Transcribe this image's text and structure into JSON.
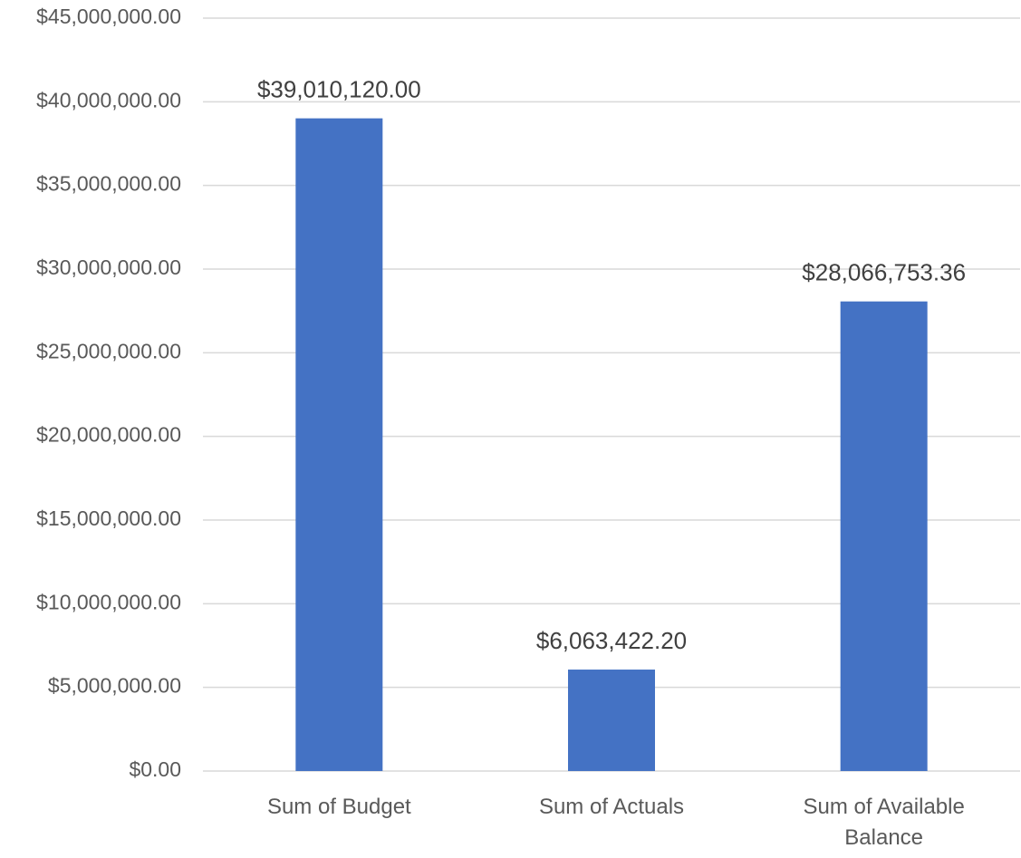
{
  "chart_data": {
    "type": "bar",
    "categories": [
      "Sum of Budget",
      "Sum of Actuals",
      "Sum of Available Balance"
    ],
    "values": [
      39010120.0,
      6063422.2,
      28066753.36
    ],
    "value_labels": [
      "$39,010,120.00",
      "$6,063,422.20",
      "$28,066,753.36"
    ],
    "color": "#4472c4",
    "ylim": [
      0,
      45000000
    ],
    "yticks": [
      {
        "value": 0,
        "label": "$0.00"
      },
      {
        "value": 5000000,
        "label": "$5,000,000.00"
      },
      {
        "value": 10000000,
        "label": "$10,000,000.00"
      },
      {
        "value": 15000000,
        "label": "$15,000,000.00"
      },
      {
        "value": 20000000,
        "label": "$20,000,000.00"
      },
      {
        "value": 25000000,
        "label": "$25,000,000.00"
      },
      {
        "value": 30000000,
        "label": "$30,000,000.00"
      },
      {
        "value": 35000000,
        "label": "$35,000,000.00"
      },
      {
        "value": 40000000,
        "label": "$40,000,000.00"
      },
      {
        "value": 45000000,
        "label": "$45,000,000.00"
      }
    ],
    "grid": true
  }
}
